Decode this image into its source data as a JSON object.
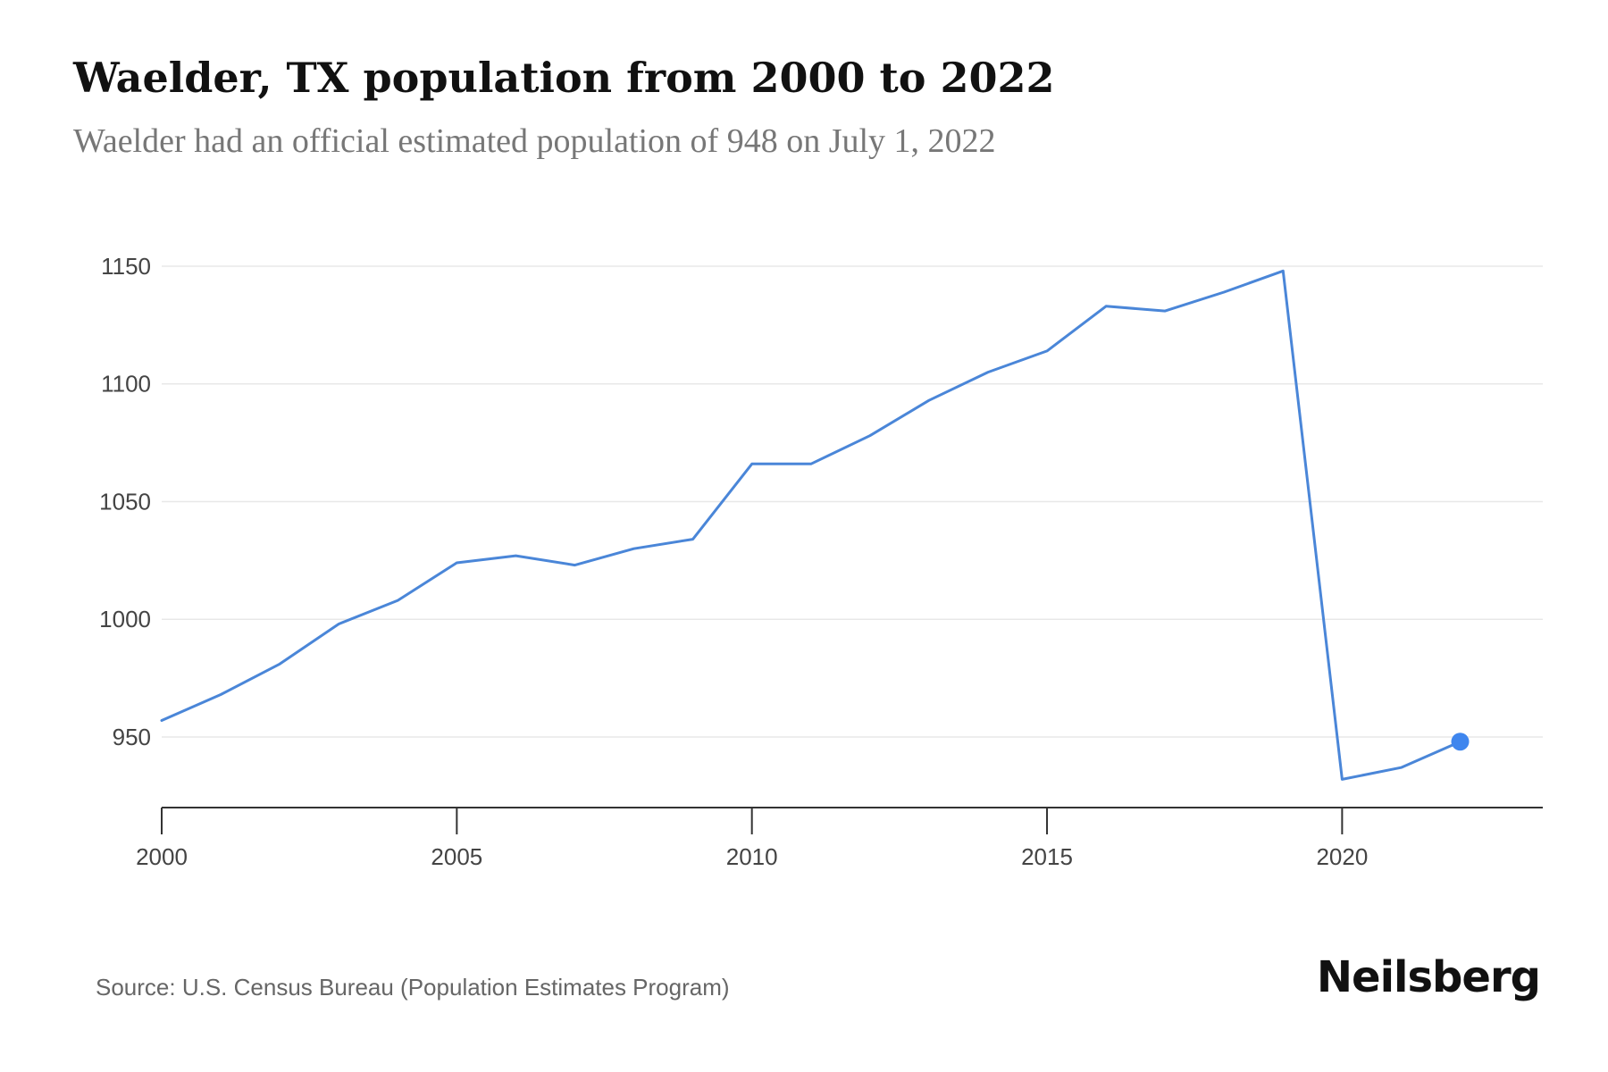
{
  "header": {
    "title": "Waelder, TX population from 2000 to 2022",
    "subtitle": "Waelder had an official estimated population of 948 on July 1, 2022"
  },
  "footer": {
    "source": "Source: U.S. Census Bureau (Population Estimates Program)",
    "brand": "Neilsberg"
  },
  "colors": {
    "line": "#4a86d8",
    "marker": "#3f86ee",
    "grid": "#e8e8e8",
    "axis": "#333333"
  },
  "chart_data": {
    "type": "line",
    "title": "Waelder, TX population from 2000 to 2022",
    "subtitle": "Waelder had an official estimated population of 948 on July 1, 2022",
    "xlabel": "",
    "ylabel": "",
    "x": [
      2000,
      2001,
      2002,
      2003,
      2004,
      2005,
      2006,
      2007,
      2008,
      2009,
      2010,
      2011,
      2012,
      2013,
      2014,
      2015,
      2016,
      2017,
      2018,
      2019,
      2020,
      2021,
      2022
    ],
    "series": [
      {
        "values": [
          957,
          968,
          981,
          998,
          1008,
          1024,
          1027,
          1023,
          1030,
          1034,
          1066,
          1066,
          1078,
          1093,
          1105,
          1114,
          1133,
          1131,
          1139,
          1148,
          932,
          937,
          948
        ]
      }
    ],
    "xlim": [
      2000,
      2023.4
    ],
    "ylim": [
      920,
      1150
    ],
    "yticks": [
      950,
      1000,
      1050,
      1100,
      1150
    ],
    "xticks": [
      2000,
      2005,
      2010,
      2015,
      2020
    ],
    "grid": true,
    "legend": "none",
    "highlight_last_point": true
  }
}
